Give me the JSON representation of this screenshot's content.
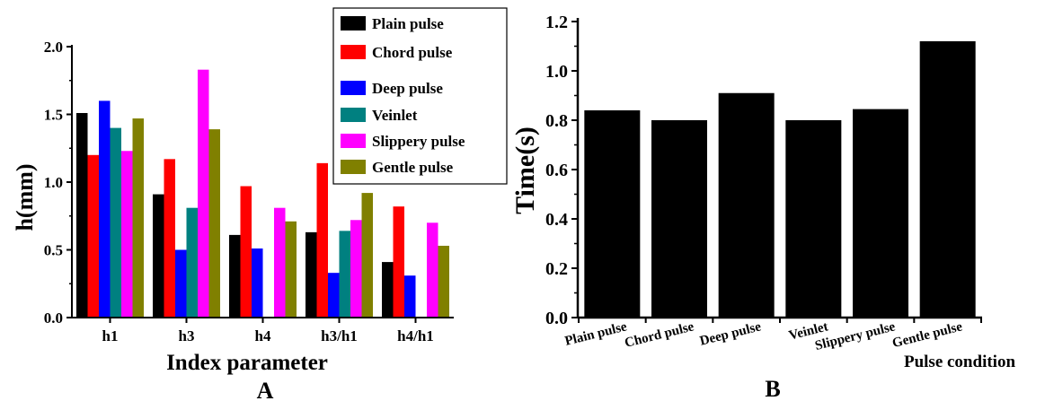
{
  "chart_data": [
    {
      "panel_label": "A",
      "type": "bar",
      "categories": [
        "h1",
        "h3",
        "h4",
        "h3/h1",
        "h4/h1"
      ],
      "xlabel": "Index parameter",
      "ylabel": "h(mm)",
      "ylim": [
        0,
        2.0
      ],
      "yticks": [
        "0.0",
        "0.5",
        "1.0",
        "1.5",
        "2.0"
      ],
      "grid": false,
      "legend_position": "top-right",
      "series": [
        {
          "name": "Plain pulse",
          "color": "#000000",
          "values": [
            1.51,
            0.91,
            0.61,
            0.63,
            0.41
          ]
        },
        {
          "name": "Chord pulse",
          "color": "#ff0000",
          "values": [
            1.2,
            1.17,
            0.97,
            1.14,
            0.82
          ]
        },
        {
          "name": "Deep pulse",
          "color": "#0000ff",
          "values": [
            1.6,
            0.5,
            0.51,
            0.33,
            0.31
          ]
        },
        {
          "name": "Veinlet",
          "color": "#008080",
          "values": [
            1.4,
            0.81,
            0.0,
            0.64,
            0.0
          ]
        },
        {
          "name": "Slippery pulse",
          "color": "#ff00ff",
          "values": [
            1.23,
            1.83,
            0.81,
            0.72,
            0.7
          ]
        },
        {
          "name": "Gentle pulse",
          "color": "#808000",
          "values": [
            1.47,
            1.39,
            0.71,
            0.92,
            0.53
          ]
        }
      ]
    },
    {
      "panel_label": "B",
      "type": "bar",
      "categories": [
        "Plain pulse",
        "Chord pulse",
        "Deep pulse",
        "Veinlet",
        "Slippery pulse",
        "Gentle pulse"
      ],
      "values": [
        0.84,
        0.8,
        0.91,
        0.8,
        0.845,
        1.12
      ],
      "xlabel": "Pulse condition",
      "ylabel": "Time(s)",
      "ylim": [
        0,
        1.2
      ],
      "yticks": [
        "0.0",
        "0.2",
        "0.4",
        "0.6",
        "0.8",
        "1.0",
        "1.2"
      ],
      "bar_color": "#000000",
      "grid": false
    }
  ]
}
